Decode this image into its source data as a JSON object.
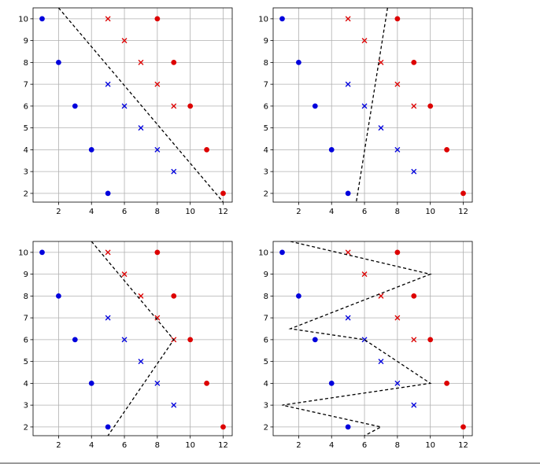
{
  "chart_data": [
    {
      "type": "scatter",
      "xlim": [
        0.45,
        12.55
      ],
      "ylim": [
        1.6,
        10.5
      ],
      "xticks": [
        2,
        4,
        6,
        8,
        10,
        12
      ],
      "yticks": [
        2,
        3,
        4,
        5,
        6,
        7,
        8,
        9,
        10
      ],
      "grid": true,
      "series": [
        {
          "marker": "o",
          "color": "#0000dd",
          "points": [
            [
              1,
              10
            ],
            [
              2,
              8
            ],
            [
              3,
              6
            ],
            [
              4,
              4
            ],
            [
              5,
              2
            ]
          ]
        },
        {
          "marker": "x",
          "color": "#0000dd",
          "points": [
            [
              5,
              7
            ],
            [
              6,
              6
            ],
            [
              7,
              5
            ],
            [
              8,
              4
            ],
            [
              9,
              3
            ]
          ]
        },
        {
          "marker": "o",
          "color": "#dd0000",
          "points": [
            [
              8,
              10
            ],
            [
              9,
              8
            ],
            [
              10,
              6
            ],
            [
              11,
              4
            ],
            [
              12,
              2
            ]
          ]
        },
        {
          "marker": "x",
          "color": "#dd0000",
          "points": [
            [
              5,
              10
            ],
            [
              6,
              9
            ],
            [
              7,
              8
            ],
            [
              8,
              7
            ],
            [
              9,
              6
            ]
          ]
        }
      ],
      "boundary": [
        [
          2,
          10.5
        ],
        [
          12,
          1.6
        ]
      ]
    },
    {
      "type": "scatter",
      "xlim": [
        0.45,
        12.55
      ],
      "ylim": [
        1.6,
        10.5
      ],
      "xticks": [
        2,
        4,
        6,
        8,
        10,
        12
      ],
      "yticks": [
        2,
        3,
        4,
        5,
        6,
        7,
        8,
        9,
        10
      ],
      "grid": true,
      "series": [
        {
          "marker": "o",
          "color": "#0000dd",
          "points": [
            [
              1,
              10
            ],
            [
              2,
              8
            ],
            [
              3,
              6
            ],
            [
              4,
              4
            ],
            [
              5,
              2
            ]
          ]
        },
        {
          "marker": "x",
          "color": "#0000dd",
          "points": [
            [
              5,
              7
            ],
            [
              6,
              6
            ],
            [
              7,
              5
            ],
            [
              8,
              4
            ],
            [
              9,
              3
            ]
          ]
        },
        {
          "marker": "o",
          "color": "#dd0000",
          "points": [
            [
              8,
              10
            ],
            [
              9,
              8
            ],
            [
              10,
              6
            ],
            [
              11,
              4
            ],
            [
              12,
              2
            ]
          ]
        },
        {
          "marker": "x",
          "color": "#dd0000",
          "points": [
            [
              5,
              10
            ],
            [
              6,
              9
            ],
            [
              7,
              8
            ],
            [
              8,
              7
            ],
            [
              9,
              6
            ]
          ]
        }
      ],
      "boundary": [
        [
          7.4,
          10.5
        ],
        [
          5.5,
          1.6
        ]
      ]
    },
    {
      "type": "scatter",
      "xlim": [
        0.45,
        12.55
      ],
      "ylim": [
        1.6,
        10.5
      ],
      "xticks": [
        2,
        4,
        6,
        8,
        10,
        12
      ],
      "yticks": [
        2,
        3,
        4,
        5,
        6,
        7,
        8,
        9,
        10
      ],
      "grid": true,
      "series": [
        {
          "marker": "o",
          "color": "#0000dd",
          "points": [
            [
              1,
              10
            ],
            [
              2,
              8
            ],
            [
              3,
              6
            ],
            [
              4,
              4
            ],
            [
              5,
              2
            ]
          ]
        },
        {
          "marker": "x",
          "color": "#0000dd",
          "points": [
            [
              5,
              7
            ],
            [
              6,
              6
            ],
            [
              7,
              5
            ],
            [
              8,
              4
            ],
            [
              9,
              3
            ]
          ]
        },
        {
          "marker": "o",
          "color": "#dd0000",
          "points": [
            [
              8,
              10
            ],
            [
              9,
              8
            ],
            [
              10,
              6
            ],
            [
              11,
              4
            ],
            [
              12,
              2
            ]
          ]
        },
        {
          "marker": "x",
          "color": "#dd0000",
          "points": [
            [
              5,
              10
            ],
            [
              6,
              9
            ],
            [
              7,
              8
            ],
            [
              8,
              7
            ],
            [
              9,
              6
            ]
          ]
        }
      ],
      "boundary": [
        [
          4,
          10.5
        ],
        [
          9,
          6
        ],
        [
          5,
          1.6
        ]
      ]
    },
    {
      "type": "scatter",
      "xlim": [
        0.45,
        12.55
      ],
      "ylim": [
        1.6,
        10.5
      ],
      "xticks": [
        2,
        4,
        6,
        8,
        10,
        12
      ],
      "yticks": [
        2,
        3,
        4,
        5,
        6,
        7,
        8,
        9,
        10
      ],
      "grid": true,
      "series": [
        {
          "marker": "o",
          "color": "#0000dd",
          "points": [
            [
              1,
              10
            ],
            [
              2,
              8
            ],
            [
              3,
              6
            ],
            [
              4,
              4
            ],
            [
              5,
              2
            ]
          ]
        },
        {
          "marker": "x",
          "color": "#0000dd",
          "points": [
            [
              5,
              7
            ],
            [
              6,
              6
            ],
            [
              7,
              5
            ],
            [
              8,
              4
            ],
            [
              9,
              3
            ]
          ]
        },
        {
          "marker": "o",
          "color": "#dd0000",
          "points": [
            [
              8,
              10
            ],
            [
              9,
              8
            ],
            [
              10,
              6
            ],
            [
              11,
              4
            ],
            [
              12,
              2
            ]
          ]
        },
        {
          "marker": "x",
          "color": "#dd0000",
          "points": [
            [
              5,
              10
            ],
            [
              6,
              9
            ],
            [
              7,
              8
            ],
            [
              8,
              7
            ],
            [
              9,
              6
            ]
          ]
        }
      ],
      "boundary": [
        [
          1.5,
          10.5
        ],
        [
          10,
          9
        ],
        [
          1.5,
          6.5
        ],
        [
          6,
          6
        ],
        [
          10,
          4
        ],
        [
          1,
          3
        ],
        [
          7,
          2
        ],
        [
          6,
          1.6
        ]
      ]
    }
  ]
}
